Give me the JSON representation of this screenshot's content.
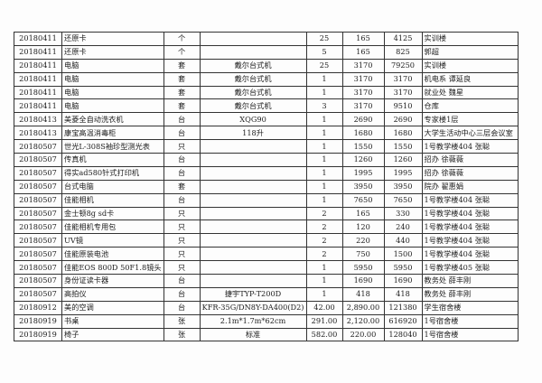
{
  "rows": [
    [
      "20180411",
      "还原卡",
      "个",
      "",
      "25",
      "165",
      "4125",
      "实训楼"
    ],
    [
      "20180411",
      "还原卡",
      "个",
      "",
      "5",
      "165",
      "825",
      "郭超"
    ],
    [
      "20180411",
      "电脑",
      "套",
      "戴尔台式机",
      "25",
      "3170",
      "79250",
      "实训楼"
    ],
    [
      "20180411",
      "电脑",
      "套",
      "戴尔台式机",
      "1",
      "3170",
      "3170",
      "机电系 谭延良"
    ],
    [
      "20180411",
      "电脑",
      "套",
      "戴尔台式机",
      "1",
      "3170",
      "3170",
      "就业处 魏星"
    ],
    [
      "20180411",
      "电脑",
      "套",
      "戴尔台式机",
      "3",
      "3170",
      "9510",
      "仓库"
    ],
    [
      "20180413",
      "美菱全自动洗衣机",
      "台",
      "XQG90",
      "1",
      "2690",
      "2690",
      "专家楼1层"
    ],
    [
      "20180413",
      "康宝高温消毒柜",
      "台",
      "118升",
      "1",
      "1680",
      "1680",
      "大学生活动中心三层会议室"
    ],
    [
      "20180507",
      "世光L-308S袖珍型测光表",
      "只",
      "",
      "1",
      "1550",
      "1550",
      "1号教学楼404 张聪"
    ],
    [
      "20180507",
      "传真机",
      "台",
      "",
      "1",
      "1260",
      "1260",
      "招办 徐薇薇"
    ],
    [
      "20180507",
      "得实ad580针式打印机",
      "台",
      "",
      "1",
      "1995",
      "1995",
      "招办 徐薇薇"
    ],
    [
      "20180507",
      "台式电脑",
      "套",
      "",
      "1",
      "3950",
      "3950",
      "院办 翟惠娟"
    ],
    [
      "20180507",
      "佳能相机",
      "台",
      "",
      "1",
      "7650",
      "7650",
      "1号教学楼404 张聪"
    ],
    [
      "20180507",
      "金士顿8g  sd卡",
      "只",
      "",
      "2",
      "165",
      "330",
      "1号教学楼404 张聪"
    ],
    [
      "20180507",
      "佳能相机专用包",
      "只",
      "",
      "2",
      "120",
      "240",
      "1号教学楼404 张聪"
    ],
    [
      "20180507",
      "UV镜",
      "只",
      "",
      "2",
      "220",
      "440",
      "1号教学楼404 张聪"
    ],
    [
      "20180507",
      "佳能原装电池",
      "只",
      "",
      "2",
      "750",
      "1500",
      "1号教学楼404 张聪"
    ],
    [
      "20180507",
      "佳能EOS  800D  50F1.8镜头",
      "只",
      "",
      "1",
      "5950",
      "5950",
      "1号教学楼405 张聪"
    ],
    [
      "20180507",
      "身份证读卡器",
      "台",
      "",
      "1",
      "1690",
      "1690",
      "教务处 薛丰刚"
    ],
    [
      "20180507",
      "高拍仪",
      "台",
      "捷宇TYP-T200D",
      "1",
      "418",
      "418",
      "教务处 薛丰刚"
    ],
    [
      "20180912",
      "美的空调",
      "台",
      "KFR-35G/DN8Y-DA400(D2)",
      "42.00",
      "2,890.00",
      "121380",
      "学生宿舍楼"
    ],
    [
      "20180919",
      "书桌",
      "张",
      "2.1m*1.7m*62cm",
      "291.00",
      "2,120.00",
      "616920",
      "1号宿舍楼"
    ],
    [
      "20180919",
      "椅子",
      "张",
      "标准",
      "582.00",
      "220.00",
      "128040",
      "1号宿舍楼"
    ]
  ]
}
